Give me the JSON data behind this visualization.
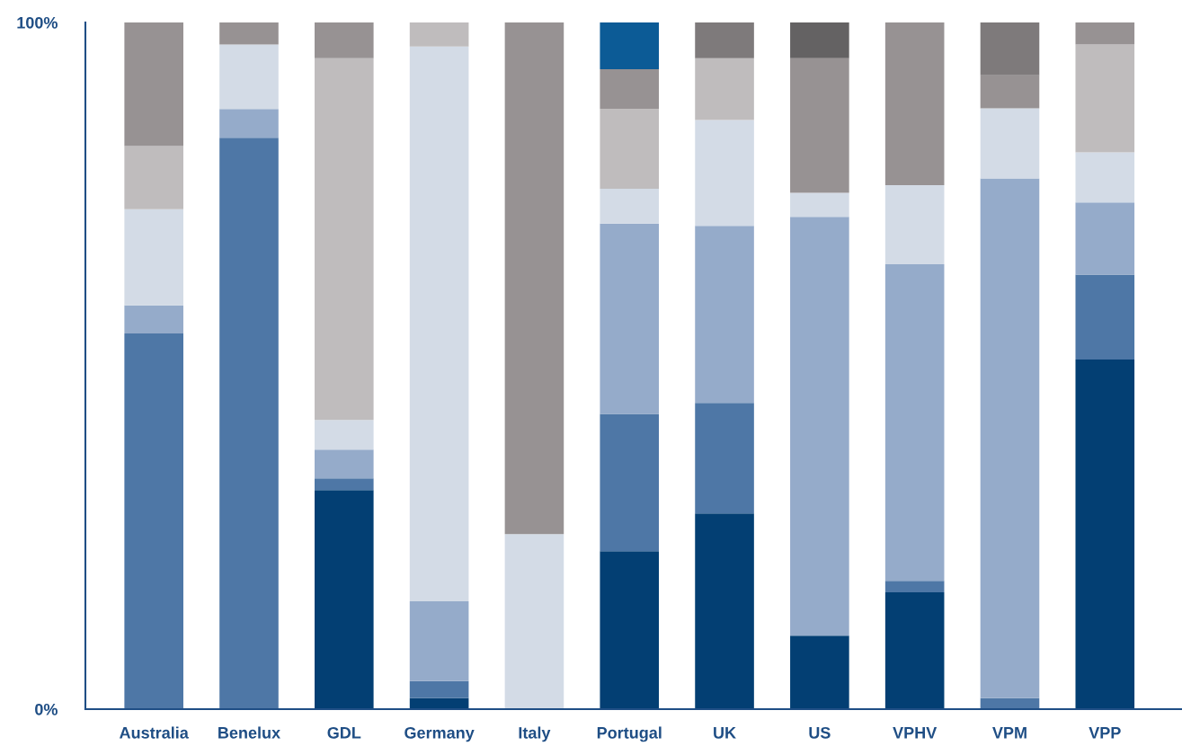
{
  "chart_data": {
    "type": "bar",
    "stacked": true,
    "categories": [
      "Australia",
      "Benelux",
      "GDL",
      "Germany",
      "Italy",
      "Portugal",
      "UK",
      "US",
      "VPHV",
      "VPM",
      "VPP"
    ],
    "series": [
      {
        "color": "#033f73",
        "values": [
          0,
          0,
          31.9,
          1.6,
          0,
          23.0,
          28.5,
          10.7,
          17.0,
          0,
          50.9
        ]
      },
      {
        "color": "#4e77a6",
        "values": [
          54.7,
          83.2,
          1.7,
          2.5,
          0,
          20.0,
          16.1,
          0,
          1.7,
          1.6,
          12.4
        ]
      },
      {
        "color": "#95abca",
        "values": [
          4.1,
          4.2,
          4.2,
          11.6,
          0,
          27.7,
          25.8,
          61.0,
          46.1,
          75.7,
          10.5
        ]
      },
      {
        "color": "#d3dbe6",
        "values": [
          14.0,
          9.4,
          4.3,
          80.8,
          25.5,
          5.1,
          15.4,
          3.5,
          11.5,
          10.2,
          7.3
        ]
      },
      {
        "color": "#bfbcbd",
        "values": [
          9.2,
          0,
          52.7,
          3.5,
          0,
          11.6,
          9.0,
          0,
          0,
          0,
          15.7
        ]
      },
      {
        "color": "#979293",
        "values": [
          18.0,
          3.2,
          5.2,
          0,
          74.5,
          5.8,
          0,
          19.6,
          23.7,
          4.8,
          3.2
        ]
      },
      {
        "color": "#7e7a7b",
        "values": [
          0,
          0,
          0,
          0,
          0,
          0,
          5.2,
          0,
          0,
          7.7,
          0
        ]
      },
      {
        "color": "#646263",
        "values": [
          0,
          0,
          0,
          0,
          0,
          0,
          0,
          5.2,
          0,
          0,
          0
        ]
      },
      {
        "color": "#0c5b96",
        "values": [
          0,
          0,
          0,
          0,
          0,
          6.8,
          0,
          0,
          0,
          0,
          0
        ]
      }
    ],
    "ylim": [
      0,
      100
    ],
    "yticks": [
      {
        "value": 0,
        "label": "0%"
      },
      {
        "value": 100,
        "label": "100%"
      }
    ],
    "grid": false
  }
}
